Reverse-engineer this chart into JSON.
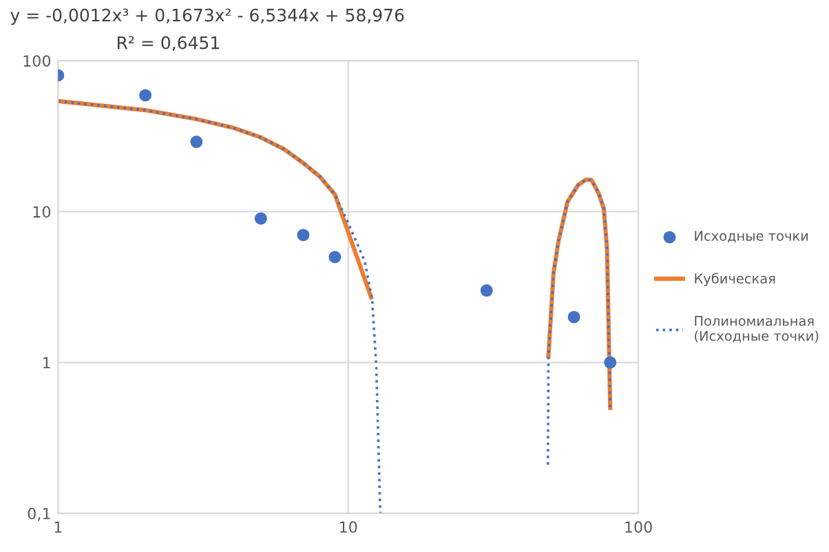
{
  "chart_data": {
    "type": "scatter",
    "log": "xy",
    "xlim": [
      1,
      100
    ],
    "ylim": [
      0.1,
      100
    ],
    "xticks": [
      1,
      10,
      100
    ],
    "yticks": [
      {
        "value": 0.1,
        "label": "0,1"
      },
      1,
      10,
      100
    ],
    "grid": true,
    "legend": "right",
    "annotations": [
      "y = -0,0012x³ + 0,1673x² - 6,5344x + 58,976",
      "R² = 0,6451"
    ],
    "series": [
      {
        "name": "Исходные точки",
        "marker": "circle",
        "color": "#4472c4",
        "x": [
          1,
          2,
          3,
          5,
          7,
          9,
          30,
          60,
          80
        ],
        "values": [
          80,
          59,
          29,
          9,
          7,
          5,
          3,
          2,
          1
        ]
      },
      {
        "name": "Кубическая",
        "type": "line",
        "marker": "none",
        "line_style": "solid",
        "color": "#ed7d31",
        "x": [
          1,
          2,
          3,
          4,
          5,
          6,
          7,
          8,
          9,
          12,
          null,
          49,
          51,
          53,
          57,
          62,
          66,
          69,
          73,
          76,
          78,
          80
        ],
        "values": [
          54,
          47,
          41,
          36,
          31,
          26,
          21,
          17,
          13,
          2.7,
          null,
          1.1,
          3.9,
          6.3,
          11.6,
          15,
          16.3,
          16.2,
          13.2,
          10.5,
          5.7,
          0.5
        ]
      },
      {
        "name": "Полиномиальная\n(Исходные точки)",
        "type": "line",
        "marker": "none",
        "line_style": "dotted",
        "color": "#4472c4",
        "x": [
          1,
          2,
          3,
          4,
          5,
          6,
          7,
          8,
          9,
          10,
          11.4,
          12.1,
          12.5,
          12.9,
          null,
          48.8,
          49,
          51,
          53,
          57,
          62,
          66,
          69,
          73,
          76,
          78,
          80
        ],
        "values": [
          54,
          47,
          41,
          36,
          31,
          26,
          21,
          17,
          13,
          8.4,
          4.7,
          2.6,
          0.94,
          0.1,
          null,
          0.21,
          1.1,
          3.9,
          6.3,
          11.6,
          15,
          16.3,
          16.2,
          13.2,
          10.5,
          5.7,
          0.5
        ]
      }
    ]
  }
}
